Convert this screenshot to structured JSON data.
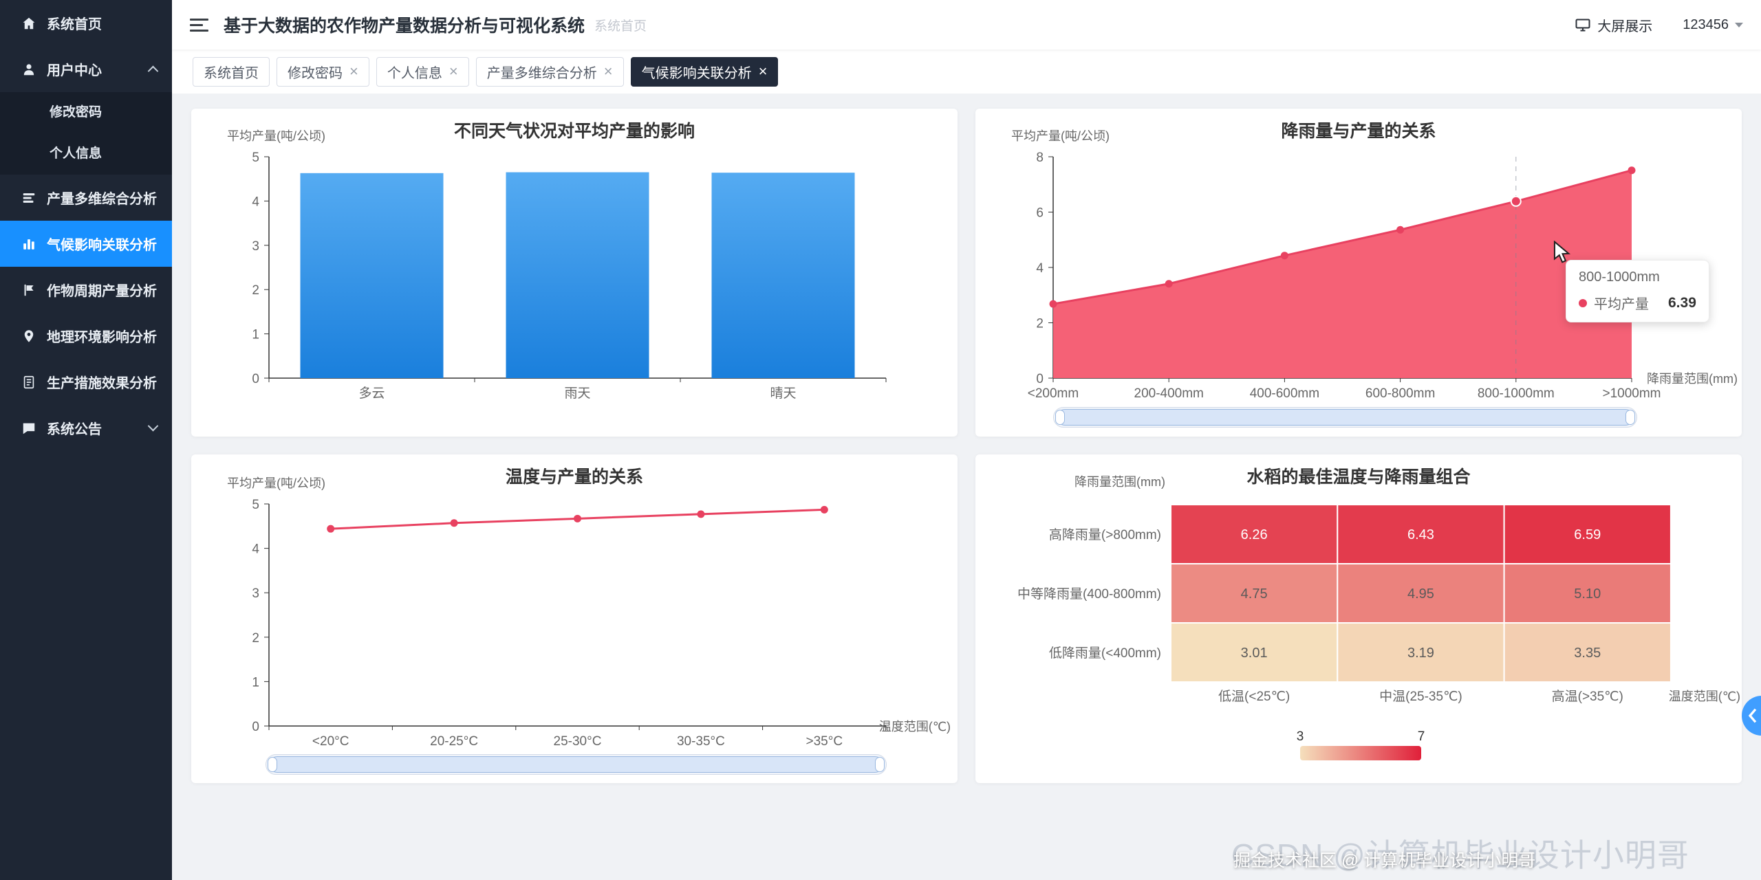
{
  "app": {
    "title": "基于大数据的农作物产量数据分析与可视化系统",
    "breadcrumb": "系统首页",
    "big_screen_label": "大屏展示",
    "username": "123456"
  },
  "sidebar": {
    "bg_color": "#1e2634",
    "active_color": "#1890ff",
    "items": [
      {
        "id": "home",
        "label": "系统首页",
        "icon": "home-icon"
      },
      {
        "id": "user-center",
        "label": "用户中心",
        "icon": "user-icon",
        "expanded": true,
        "children": [
          {
            "id": "change-password",
            "label": "修改密码"
          },
          {
            "id": "profile",
            "label": "个人信息"
          }
        ]
      },
      {
        "id": "yield-multi-analysis",
        "label": "产量多维综合分析",
        "icon": "multi-chart-icon"
      },
      {
        "id": "climate-analysis",
        "label": "气候影响关联分析",
        "icon": "bar-chart-icon",
        "active": true
      },
      {
        "id": "crop-cycle-analysis",
        "label": "作物周期产量分析",
        "icon": "flag-icon"
      },
      {
        "id": "geo-analysis",
        "label": "地理环境影响分析",
        "icon": "location-icon"
      },
      {
        "id": "production-analysis",
        "label": "生产措施效果分析",
        "icon": "document-icon"
      },
      {
        "id": "announcements",
        "label": "系统公告",
        "icon": "comment-icon",
        "collapsible": true,
        "expanded": false
      }
    ]
  },
  "tabs": [
    {
      "id": "home",
      "label": "系统首页",
      "closable": false,
      "active": false
    },
    {
      "id": "change-password",
      "label": "修改密码",
      "closable": true,
      "active": false
    },
    {
      "id": "profile",
      "label": "个人信息",
      "closable": true,
      "active": false
    },
    {
      "id": "yield-multi-analysis",
      "label": "产量多维综合分析",
      "closable": true,
      "active": false
    },
    {
      "id": "climate-analysis",
      "label": "气候影响关联分析",
      "closable": true,
      "active": true
    }
  ],
  "chart_data": [
    {
      "type": "bar",
      "title": "不同天气状况对平均产量的影响",
      "ylabel": "平均产量(吨/公顷)",
      "categories": [
        "多云",
        "雨天",
        "晴天"
      ],
      "values": [
        4.63,
        4.65,
        4.64
      ],
      "ylim": [
        0,
        5
      ],
      "yticks": [
        0,
        1,
        2,
        3,
        4,
        5
      ],
      "colors": {
        "bar_top": "#55abf2",
        "bar_bottom": "#1a7fdc"
      }
    },
    {
      "type": "area",
      "title": "降雨量与产量的关系",
      "ylabel": "平均产量(吨/公顷)",
      "xlabel": "降雨量范围(mm)",
      "categories": [
        "<200mm",
        "200-400mm",
        "400-600mm",
        "600-800mm",
        "800-1000mm",
        ">1000mm"
      ],
      "values": [
        2.68,
        3.41,
        4.43,
        5.36,
        6.39,
        7.51
      ],
      "ylim": [
        0,
        8
      ],
      "yticks": [
        0,
        2,
        4,
        6,
        8
      ],
      "highlight_index": 4,
      "colors": {
        "line": "#e84160",
        "area": "#f4586f"
      }
    },
    {
      "type": "line",
      "title": "温度与产量的关系",
      "ylabel": "平均产量(吨/公顷)",
      "xlabel": "温度范围(℃)",
      "categories": [
        "<20°C",
        "20-25°C",
        "25-30°C",
        "30-35°C",
        ">35°C"
      ],
      "values": [
        4.44,
        4.57,
        4.67,
        4.77,
        4.87
      ],
      "ylim": [
        0,
        5
      ],
      "yticks": [
        0,
        1,
        2,
        3,
        4,
        5
      ],
      "colors": {
        "line": "#e84160"
      }
    },
    {
      "type": "heatmap",
      "title": "水稻的最佳温度与降雨量组合",
      "ylabel": "降雨量范围(mm)",
      "xlabel": "温度范围(℃)",
      "rows": [
        "高降雨量(>800mm)",
        "中等降雨量(400-800mm)",
        "低降雨量(<400mm)"
      ],
      "columns": [
        "低温(<25℃)",
        "中温(25-35℃)",
        "高温(>35℃)"
      ],
      "values": [
        [
          "6.26",
          "6.43",
          "6.59"
        ],
        [
          "4.75",
          "4.95",
          "5.10"
        ],
        [
          "3.01",
          "3.19",
          "3.35"
        ]
      ],
      "scale": {
        "min": 3,
        "max": 7,
        "min_color": "#f5dfbc",
        "max_color": "#e0203a"
      }
    }
  ],
  "tooltip": {
    "title": "800-1000mm",
    "series": "平均产量",
    "value": "6.39"
  },
  "watermark": {
    "csdn": "CSDN @计算机毕业设计小明哥",
    "juejin": "掘金技术社区 @ 计算机毕业设计小明哥"
  }
}
